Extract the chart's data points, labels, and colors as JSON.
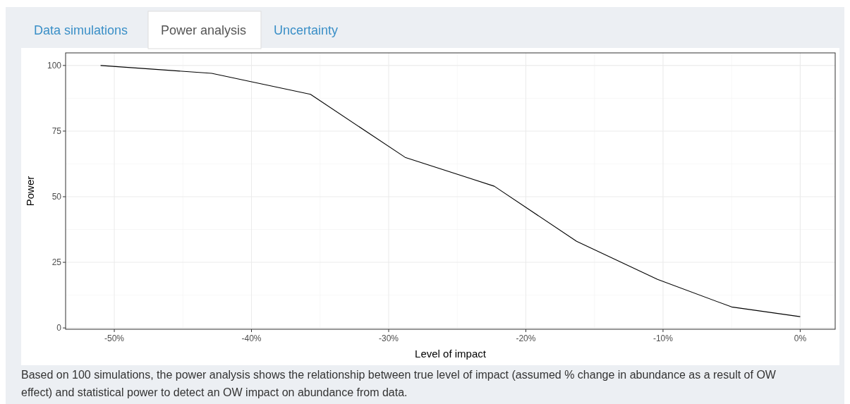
{
  "chart_data": {
    "type": "line",
    "xlabel": "Level of impact",
    "ylabel": "Power",
    "x": [
      -51,
      -42.9,
      -35.7,
      -28.8,
      -22.3,
      -16.3,
      -10.4,
      -5,
      0
    ],
    "series": [
      {
        "color": "#000000",
        "values": [
          100,
          97,
          89,
          65,
          54,
          33,
          18.5,
          8,
          4.3
        ]
      }
    ],
    "xlim": [
      -53.55,
      2.55
    ],
    "ylim": [
      -0.5,
      104.8
    ],
    "xticks": [
      {
        "value": -50,
        "label": "-50%"
      },
      {
        "value": -40,
        "label": "-40%"
      },
      {
        "value": -30,
        "label": "-30%"
      },
      {
        "value": -20,
        "label": "-20%"
      },
      {
        "value": -10,
        "label": "-10%"
      },
      {
        "value": 0,
        "label": "0%"
      }
    ],
    "yticks": [
      0,
      25,
      50,
      75,
      100
    ],
    "grid": true,
    "marker": "none",
    "line_style": "solid",
    "annotations": [
      "Data simulations",
      "Power analysis",
      "Uncertainty",
      "Based on 100 simulations, the power analysis shows the relationship between true level of impact (assumed % change in abundance as a result of OW effect) and statistical power to detect an OW impact on abundance from data."
    ]
  }
}
